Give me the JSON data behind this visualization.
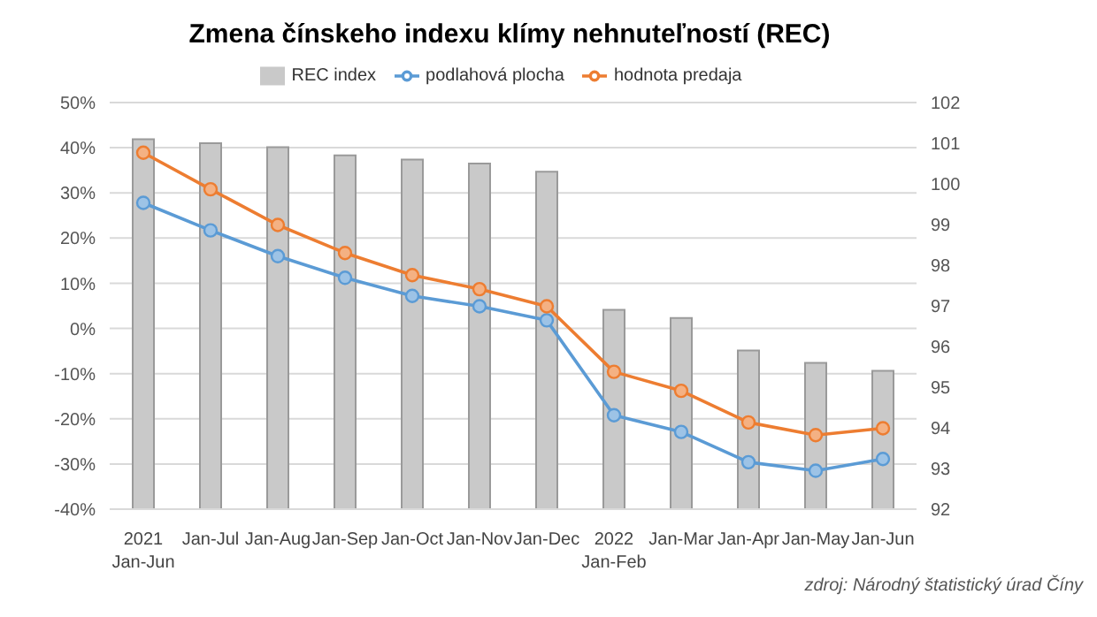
{
  "chart_data": {
    "type": "bar",
    "title": "Zmena čínskeho indexu klímy nehnuteľností (REC)",
    "categories": [
      "2021\nJan-Jun",
      "Jan-Jul",
      "Jan-Aug",
      "Jan-Sep",
      "Jan-Oct",
      "Jan-Nov",
      "Jan-Dec",
      "2022\nJan-Feb",
      "Jan-Mar",
      "Jan-Apr",
      "Jan-May",
      "Jan-Jun"
    ],
    "series": [
      {
        "name": "REC index",
        "axis": "y2",
        "color": "#c9c9c9",
        "values": [
          101.1,
          101.0,
          100.9,
          100.7,
          100.6,
          100.5,
          100.3,
          96.9,
          96.7,
          95.9,
          95.6,
          95.4
        ]
      },
      {
        "name": "podlahová plocha",
        "type": "line",
        "color": "#5b9bd5",
        "values": [
          27.8,
          21.7,
          16.0,
          11.2,
          7.2,
          4.9,
          1.8,
          -19.2,
          -22.9,
          -29.6,
          -31.5,
          -28.9
        ]
      },
      {
        "name": "hodnota predaja",
        "type": "line",
        "color": "#ed7d31",
        "values": [
          38.9,
          30.8,
          22.9,
          16.7,
          11.8,
          8.7,
          4.9,
          -9.6,
          -13.8,
          -20.8,
          -23.6,
          -22.1
        ]
      }
    ],
    "ylim": [
      -40,
      50
    ],
    "yticks": [
      {
        "value": -40,
        "label": "-40%"
      },
      {
        "value": -30,
        "label": "-30%"
      },
      {
        "value": -20,
        "label": "-20%"
      },
      {
        "value": -10,
        "label": "-10%"
      },
      {
        "value": 0,
        "label": "0%"
      },
      {
        "value": 10,
        "label": "10%"
      },
      {
        "value": 20,
        "label": "20%"
      },
      {
        "value": 30,
        "label": "30%"
      },
      {
        "value": 40,
        "label": "40%"
      },
      {
        "value": 50,
        "label": "50%"
      }
    ],
    "y2lim": [
      92,
      102
    ],
    "y2ticks": [
      92,
      93,
      94,
      95,
      96,
      97,
      98,
      99,
      100,
      101,
      102
    ],
    "grid": "y",
    "legend": "top",
    "marker": "circle",
    "line_style": "solid",
    "annotations": [
      "zdroj: Národný štatistický úrad Číny"
    ]
  }
}
